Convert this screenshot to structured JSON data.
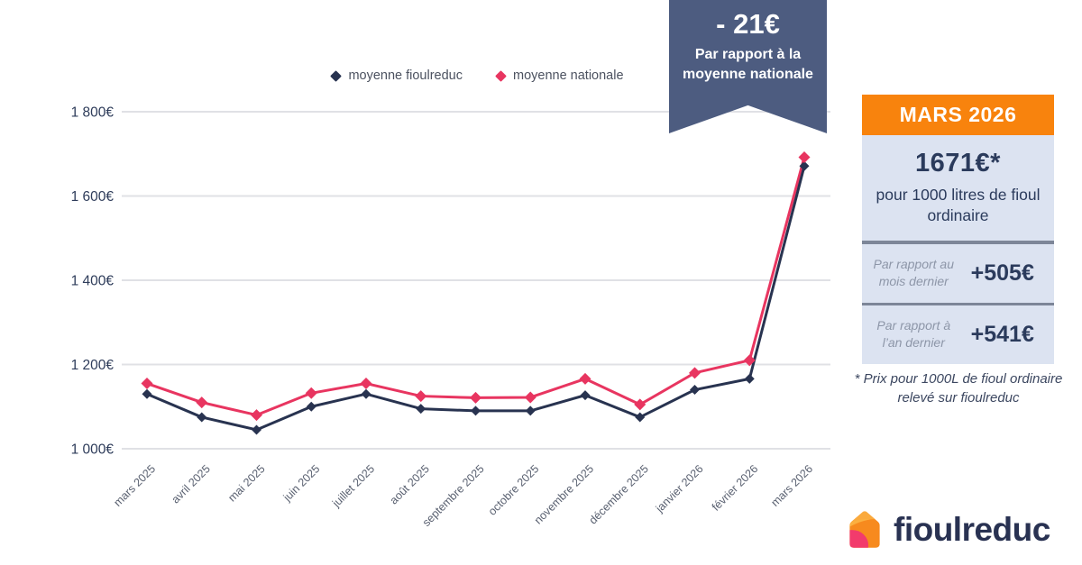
{
  "banner": {
    "value": "- 21€",
    "caption": "Par rapport à la moyenne nationale",
    "color": "#4d5c80"
  },
  "chart_data": {
    "type": "line",
    "title": "",
    "categories": [
      "mars 2025",
      "avril 2025",
      "mai 2025",
      "juin 2025",
      "juillet 2025",
      "août 2025",
      "septembre 2025",
      "octobre 2025",
      "novembre 2025",
      "décembre 2025",
      "janvier 2026",
      "février 2026",
      "mars 2026"
    ],
    "series": [
      {
        "name": "moyenne fioulreduc",
        "color": "#283350",
        "marker": "diamond",
        "values": [
          1130,
          1075,
          1045,
          1100,
          1130,
          1095,
          1090,
          1090,
          1127,
          1075,
          1140,
          1166,
          1671
        ]
      },
      {
        "name": "moyenne nationale",
        "color": "#e83560",
        "marker": "diamond",
        "values": [
          1155,
          1110,
          1080,
          1132,
          1155,
          1125,
          1121,
          1122,
          1166,
          1105,
          1180,
          1210,
          1692
        ]
      }
    ],
    "xlabel": "",
    "ylabel": "",
    "ylim": [
      1000,
      1800
    ],
    "yticks": [
      {
        "value": 1000,
        "label": "1 000€"
      },
      {
        "value": 1200,
        "label": "1 200€"
      },
      {
        "value": 1400,
        "label": "1 400€"
      },
      {
        "value": 1600,
        "label": "1 600€"
      },
      {
        "value": 1800,
        "label": "1 800€"
      }
    ],
    "grid": true,
    "legend_position": "top"
  },
  "panel": {
    "header": "MARS 2026",
    "header_color": "#f8830d",
    "body_color": "#dce3f1",
    "price": "1671€*",
    "price_caption": "pour 1000 litres de fioul ordinaire",
    "rows": [
      {
        "label": "Par rapport au mois dernier",
        "value": "+505€"
      },
      {
        "label": "Par rapport à l’an dernier",
        "value": "+541€"
      }
    ]
  },
  "footnote": "* Prix pour 1000L de fioul ordinaire relevé sur fioulreduc",
  "logo": {
    "text": "fioulreduc"
  }
}
